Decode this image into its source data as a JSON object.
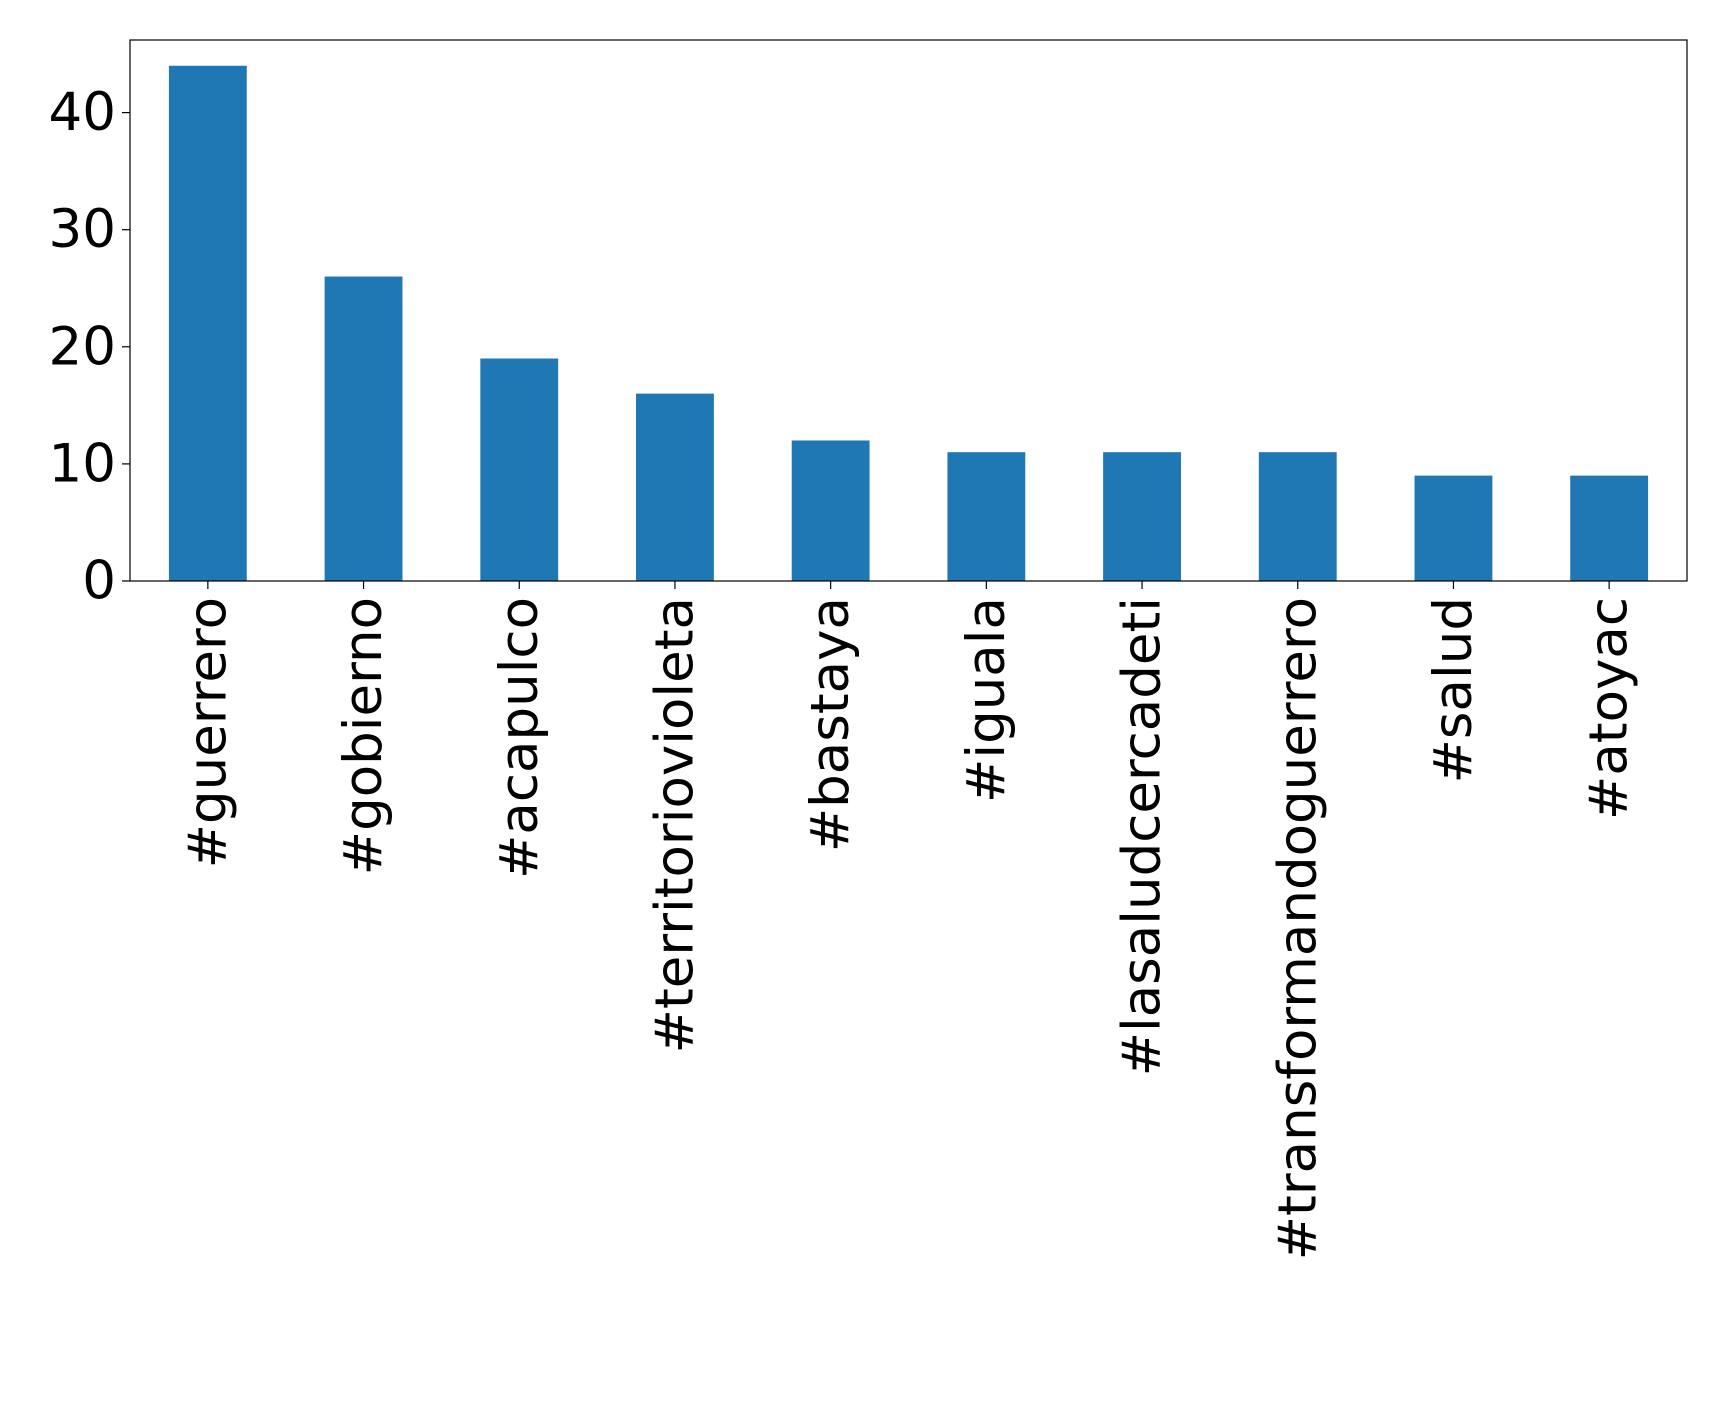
{
  "chart_data": {
    "type": "bar",
    "categories": [
      "#guerrero",
      "#gobierno",
      "#acapulco",
      "#territoriovioleta",
      "#bastaya",
      "#iguala",
      "#lasaludcercadeti",
      "#transformandoguerrero",
      "#salud",
      "#atoyac"
    ],
    "values": [
      44,
      26,
      19,
      16,
      12,
      11,
      11,
      11,
      9,
      9
    ],
    "color": "#1f77b4",
    "ylim": [
      0,
      46.2
    ],
    "yticks": [
      0,
      10,
      20,
      30,
      40
    ],
    "grid": false
  }
}
